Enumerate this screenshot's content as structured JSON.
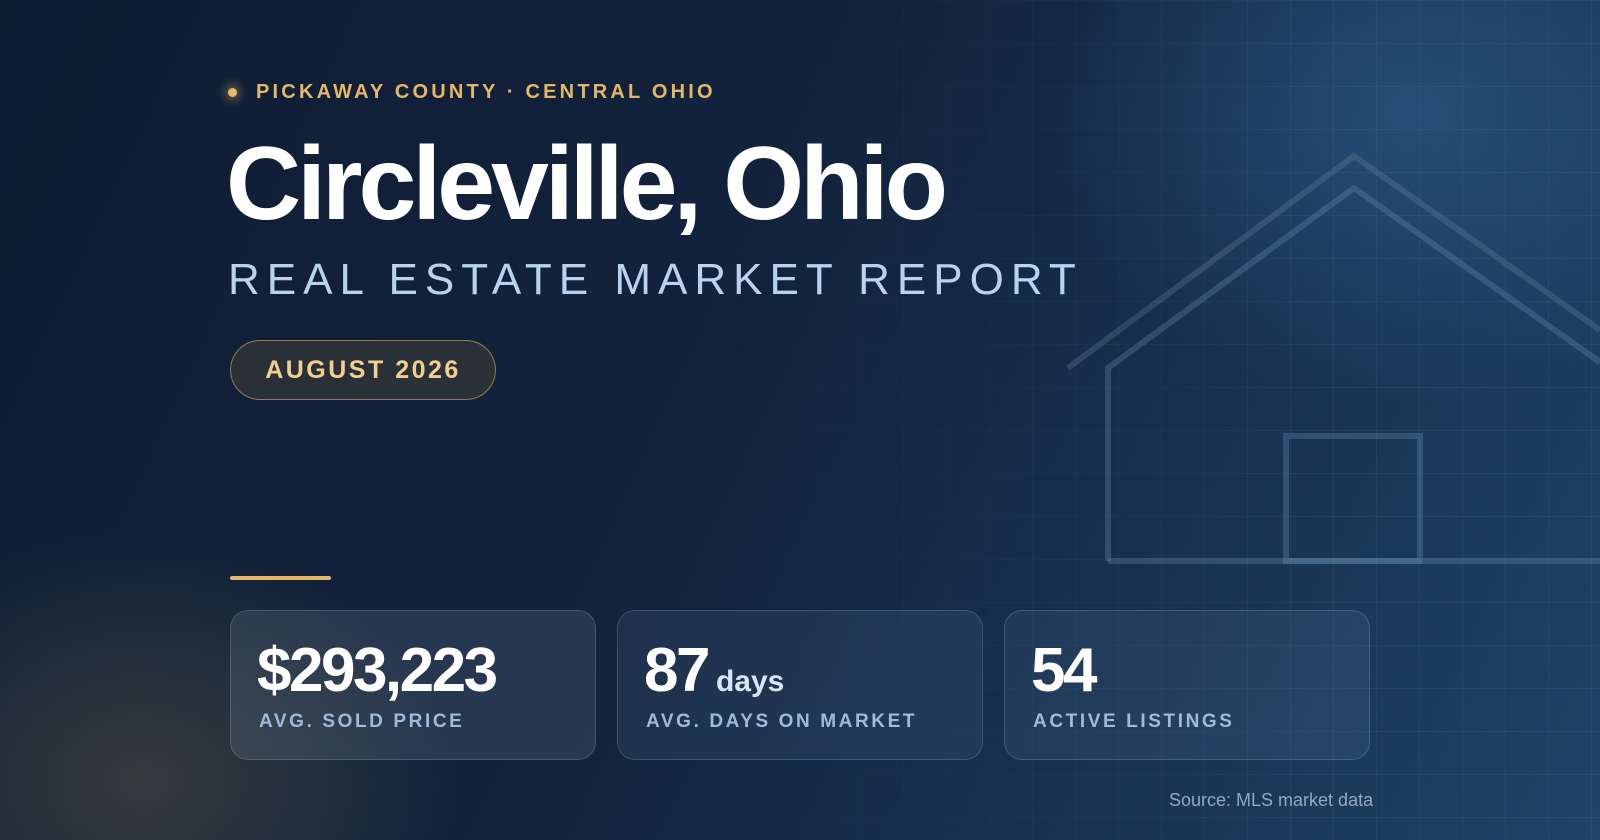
{
  "header": {
    "eyebrow": "PICKAWAY COUNTY · CENTRAL OHIO",
    "title": "Circleville, Ohio",
    "subtitle": "REAL ESTATE MARKET REPORT",
    "date_badge": "AUGUST 2026"
  },
  "stats": [
    {
      "value": "$293,223",
      "unit": "",
      "label": "AVG. SOLD PRICE"
    },
    {
      "value": "87",
      "unit": "days",
      "label": "AVG. DAYS ON MARKET"
    },
    {
      "value": "54",
      "unit": "",
      "label": "ACTIVE LISTINGS"
    }
  ],
  "footer": {
    "source": "Source: MLS market data"
  },
  "colors": {
    "accent_gold": "#e6b766",
    "title": "#ffffff",
    "subtitle": "#b9d2ef",
    "background_dark": "#0f1d33",
    "background_light": "#1f4468"
  },
  "icons": {
    "background_illustration": "house-outline-icon"
  }
}
